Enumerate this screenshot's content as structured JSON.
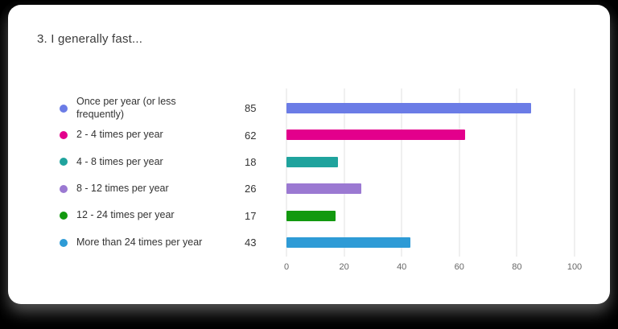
{
  "page": {
    "title": "3. I generally fast..."
  },
  "chart_data": {
    "type": "bar",
    "orientation": "horizontal",
    "title": "3. I generally fast...",
    "categories": [
      "Once per year (or less frequently)",
      "2 - 4 times per year",
      "4 - 8 times per year",
      "8 - 12 times per year",
      "12 - 24 times per year",
      "More than 24 times per year"
    ],
    "values": [
      85,
      62,
      18,
      26,
      17,
      43
    ],
    "colors": [
      "#6b7ce6",
      "#e3008c",
      "#1fa39d",
      "#9b79d2",
      "#12990f",
      "#2e9bd6"
    ],
    "xlim": [
      0,
      100
    ],
    "x_ticks": [
      0,
      20,
      40,
      60,
      80,
      100
    ],
    "grid": true,
    "legend_position": "left",
    "xlabel": "",
    "ylabel": ""
  }
}
